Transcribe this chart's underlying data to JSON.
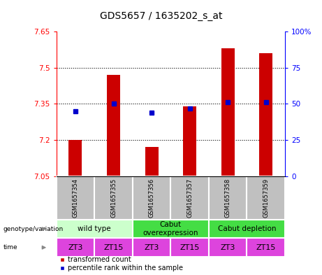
{
  "title": "GDS5657 / 1635202_s_at",
  "samples": [
    "GSM1657354",
    "GSM1657355",
    "GSM1657356",
    "GSM1657357",
    "GSM1657358",
    "GSM1657359"
  ],
  "transformed_counts": [
    7.2,
    7.47,
    7.17,
    7.34,
    7.58,
    7.56
  ],
  "percentile_ranks": [
    45,
    50,
    44,
    47,
    51,
    51
  ],
  "ylim_left": [
    7.05,
    7.65
  ],
  "ylim_right": [
    0,
    100
  ],
  "yticks_left": [
    7.05,
    7.2,
    7.35,
    7.5,
    7.65
  ],
  "yticks_right": [
    0,
    25,
    50,
    75,
    100
  ],
  "ytick_labels_right": [
    "0",
    "25",
    "50",
    "75",
    "100%"
  ],
  "hlines": [
    7.2,
    7.35,
    7.5
  ],
  "bar_color": "#cc0000",
  "dot_color": "#0000cc",
  "bar_width": 0.35,
  "genotype_groups": [
    {
      "label": "wild type",
      "start": 0,
      "end": 2,
      "color": "#ccffcc"
    },
    {
      "label": "Cabut\noverexpression",
      "start": 2,
      "end": 4,
      "color": "#44dd44"
    },
    {
      "label": "Cabut depletion",
      "start": 4,
      "end": 6,
      "color": "#44dd44"
    }
  ],
  "time_labels": [
    "ZT3",
    "ZT15",
    "ZT3",
    "ZT15",
    "ZT3",
    "ZT15"
  ],
  "time_color": "#dd44dd",
  "sample_bg_color": "#c0c0c0",
  "legend_items": [
    {
      "label": "transformed count",
      "color": "#cc0000"
    },
    {
      "label": "percentile rank within the sample",
      "color": "#0000cc"
    }
  ],
  "title_fontsize": 10,
  "tick_fontsize": 7.5,
  "sample_fontsize": 6,
  "geno_fontsize": 7.5,
  "time_fontsize": 8
}
